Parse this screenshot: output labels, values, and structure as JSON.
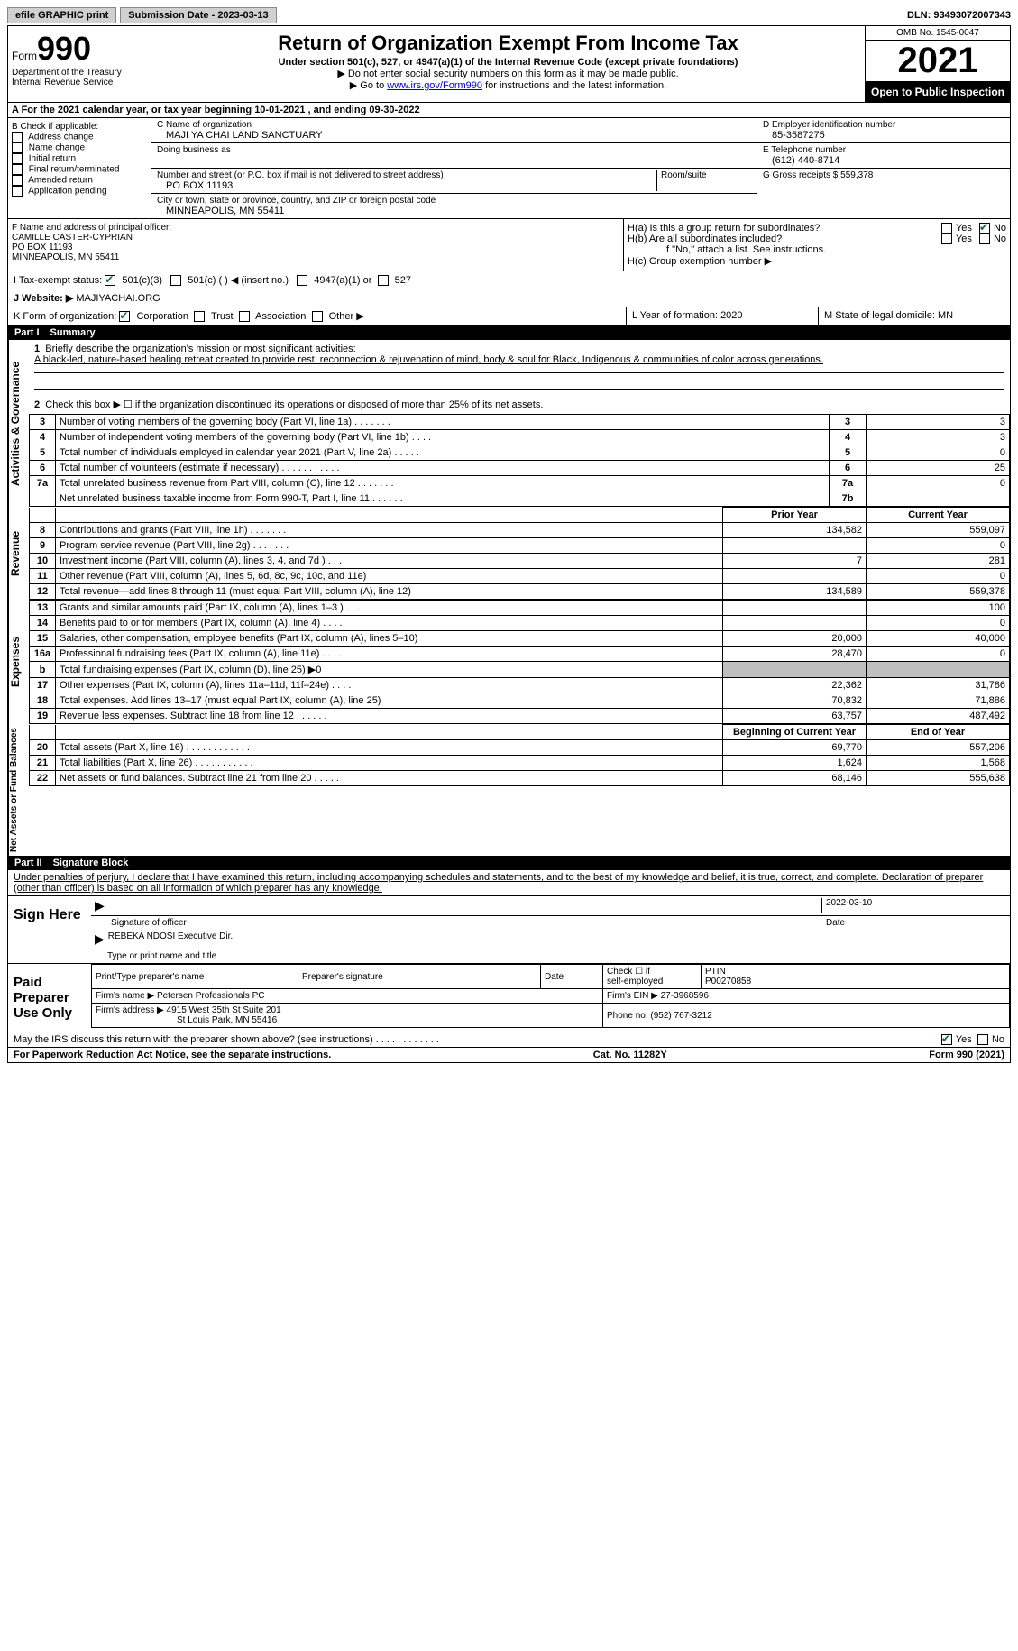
{
  "topbar": {
    "efile": "efile GRAPHIC print",
    "submission": "Submission Date - 2023-03-13",
    "dln": "DLN: 93493072007343"
  },
  "header": {
    "form_label": "Form",
    "form_number": "990",
    "dept": "Department of the Treasury",
    "irs": "Internal Revenue Service",
    "title": "Return of Organization Exempt From Income Tax",
    "subtitle": "Under section 501(c), 527, or 4947(a)(1) of the Internal Revenue Code (except private foundations)",
    "inst1": "▶ Do not enter social security numbers on this form as it may be made public.",
    "inst2_a": "▶ Go to ",
    "inst2_link": "www.irs.gov/Form990",
    "inst2_b": " for instructions and the latest information.",
    "omb": "OMB No. 1545-0047",
    "year": "2021",
    "inspection": "Open to Public Inspection"
  },
  "rowA": "A For the 2021 calendar year, or tax year beginning 10-01-2021   , and ending 09-30-2022",
  "colB": {
    "title": "B Check if applicable:",
    "items": [
      "Address change",
      "Name change",
      "Initial return",
      "Final return/terminated",
      "Amended return",
      "Application pending"
    ]
  },
  "colC": {
    "name_lbl": "C Name of organization",
    "name": "MAJI YA CHAI LAND SANCTUARY",
    "dba_lbl": "Doing business as",
    "addr_lbl": "Number and street (or P.O. box if mail is not delivered to street address)",
    "room_lbl": "Room/suite",
    "addr": "PO BOX 11193",
    "city_lbl": "City or town, state or province, country, and ZIP or foreign postal code",
    "city": "MINNEAPOLIS, MN  55411"
  },
  "colD": {
    "ein_lbl": "D Employer identification number",
    "ein": "85-3587275",
    "tel_lbl": "E Telephone number",
    "tel": "(612) 440-8714",
    "gross_lbl": "G Gross receipts $",
    "gross": "559,378"
  },
  "rowF": {
    "lbl": "F Name and address of principal officer:",
    "name": "CAMILLE CASTER-CYPRIAN",
    "addr1": "PO BOX 11193",
    "addr2": "MINNEAPOLIS, MN  55411"
  },
  "rowH": {
    "ha": "H(a)  Is this a group return for subordinates?",
    "hb": "H(b)  Are all subordinates included?",
    "hb_note": "If \"No,\" attach a list. See instructions.",
    "hc": "H(c)  Group exemption number ▶",
    "yes": "Yes",
    "no": "No"
  },
  "rowI": {
    "lbl": "I   Tax-exempt status:",
    "o1": "501(c)(3)",
    "o2": "501(c) (   ) ◀ (insert no.)",
    "o3": "4947(a)(1) or",
    "o4": "527"
  },
  "rowJ": {
    "lbl": "J   Website: ▶",
    "val": "MAJIYACHAI.ORG"
  },
  "rowK": {
    "lbl": "K Form of organization:",
    "o1": "Corporation",
    "o2": "Trust",
    "o3": "Association",
    "o4": "Other ▶",
    "l_lbl": "L Year of formation:",
    "l_val": "2020",
    "m_lbl": "M State of legal domicile:",
    "m_val": "MN"
  },
  "part1": {
    "hdr_num": "Part I",
    "hdr_title": "Summary",
    "l1_lbl": "Briefly describe the organization's mission or most significant activities:",
    "l1_val": "A black-led, nature-based healing retreat created to provide rest, reconnection & rejuvenation of mind, body & soul for Black, Indigenous & communities of color across generations.",
    "l2": "Check this box ▶ ☐ if the organization discontinued its operations or disposed of more than 25% of its net assets.",
    "vert_ag": "Activities & Governance",
    "vert_rev": "Revenue",
    "vert_exp": "Expenses",
    "vert_na": "Net Assets or Fund Balances"
  },
  "ag_lines": [
    {
      "n": "3",
      "d": "Number of voting members of the governing body (Part VI, line 1a)   .    .    .    .    .    .    .",
      "b": "3",
      "v": "3"
    },
    {
      "n": "4",
      "d": "Number of independent voting members of the governing body (Part VI, line 1b)   .    .    .    .",
      "b": "4",
      "v": "3"
    },
    {
      "n": "5",
      "d": "Total number of individuals employed in calendar year 2021 (Part V, line 2a)   .    .    .    .    .",
      "b": "5",
      "v": "0"
    },
    {
      "n": "6",
      "d": "Total number of volunteers (estimate if necessary)   .    .    .    .    .    .    .    .    .    .    .",
      "b": "6",
      "v": "25"
    },
    {
      "n": "7a",
      "d": "Total unrelated business revenue from Part VIII, column (C), line 12   .    .    .    .    .    .    .",
      "b": "7a",
      "v": "0"
    },
    {
      "n": "",
      "d": "Net unrelated business taxable income from Form 990-T, Part I, line 11   .    .    .    .    .    .",
      "b": "7b",
      "v": ""
    }
  ],
  "two_col_hdr": {
    "py": "Prior Year",
    "cy": "Current Year"
  },
  "rev_lines": [
    {
      "n": "8",
      "d": "Contributions and grants (Part VIII, line 1h)   .    .    .    .    .    .    .",
      "py": "134,582",
      "cy": "559,097"
    },
    {
      "n": "9",
      "d": "Program service revenue (Part VIII, line 2g)   .    .    .    .    .    .    .",
      "py": "",
      "cy": "0"
    },
    {
      "n": "10",
      "d": "Investment income (Part VIII, column (A), lines 3, 4, and 7d )   .    .    .",
      "py": "7",
      "cy": "281"
    },
    {
      "n": "11",
      "d": "Other revenue (Part VIII, column (A), lines 5, 6d, 8c, 9c, 10c, and 11e)",
      "py": "",
      "cy": "0"
    },
    {
      "n": "12",
      "d": "Total revenue—add lines 8 through 11 (must equal Part VIII, column (A), line 12)",
      "py": "134,589",
      "cy": "559,378"
    }
  ],
  "exp_lines": [
    {
      "n": "13",
      "d": "Grants and similar amounts paid (Part IX, column (A), lines 1–3 )   .    .    .",
      "py": "",
      "cy": "100"
    },
    {
      "n": "14",
      "d": "Benefits paid to or for members (Part IX, column (A), line 4)   .    .    .    .",
      "py": "",
      "cy": "0"
    },
    {
      "n": "15",
      "d": "Salaries, other compensation, employee benefits (Part IX, column (A), lines 5–10)",
      "py": "20,000",
      "cy": "40,000"
    },
    {
      "n": "16a",
      "d": "Professional fundraising fees (Part IX, column (A), line 11e)   .    .    .    .",
      "py": "28,470",
      "cy": "0"
    },
    {
      "n": "b",
      "d": "Total fundraising expenses (Part IX, column (D), line 25) ▶0",
      "py": "_shade_",
      "cy": "_shade_"
    },
    {
      "n": "17",
      "d": "Other expenses (Part IX, column (A), lines 11a–11d, 11f–24e)   .    .    .    .",
      "py": "22,362",
      "cy": "31,786"
    },
    {
      "n": "18",
      "d": "Total expenses. Add lines 13–17 (must equal Part IX, column (A), line 25)",
      "py": "70,832",
      "cy": "71,886"
    },
    {
      "n": "19",
      "d": "Revenue less expenses. Subtract line 18 from line 12   .    .    .    .    .    .",
      "py": "63,757",
      "cy": "487,492"
    }
  ],
  "na_hdr": {
    "b": "Beginning of Current Year",
    "e": "End of Year"
  },
  "na_lines": [
    {
      "n": "20",
      "d": "Total assets (Part X, line 16)   .    .    .    .    .    .    .    .    .    .    .    .",
      "py": "69,770",
      "cy": "557,206"
    },
    {
      "n": "21",
      "d": "Total liabilities (Part X, line 26)   .    .    .    .    .    .    .    .    .    .    .",
      "py": "1,624",
      "cy": "1,568"
    },
    {
      "n": "22",
      "d": "Net assets or fund balances. Subtract line 21 from line 20   .    .    .    .    .",
      "py": "68,146",
      "cy": "555,638"
    }
  ],
  "part2": {
    "hdr_num": "Part II",
    "hdr_title": "Signature Block",
    "decl": "Under penalties of perjury, I declare that I have examined this return, including accompanying schedules and statements, and to the best of my knowledge and belief, it is true, correct, and complete. Declaration of preparer (other than officer) is based on all information of which preparer has any knowledge."
  },
  "sign": {
    "lbl": "Sign Here",
    "sig_lbl": "Signature of officer",
    "date": "2022-03-10",
    "date_lbl": "Date",
    "name": "REBEKA NDOSI  Executive Dir.",
    "name_lbl": "Type or print name and title"
  },
  "prep": {
    "lbl": "Paid Preparer Use Only",
    "c1": "Print/Type preparer's name",
    "c2": "Preparer's signature",
    "c3": "Date",
    "c4a": "Check ☐ if",
    "c4b": "self-employed",
    "c5_lbl": "PTIN",
    "c5": "P00270858",
    "firm_lbl": "Firm's name    ▶",
    "firm": "Petersen Professionals PC",
    "ein_lbl": "Firm's EIN ▶",
    "ein": "27-3968596",
    "addr_lbl": "Firm's address ▶",
    "addr1": "4915 West 35th St Suite 201",
    "addr2": "St Louis Park, MN  55416",
    "phone_lbl": "Phone no.",
    "phone": "(952) 767-3212"
  },
  "footer": {
    "q": "May the IRS discuss this return with the preparer shown above? (see instructions)   .    .    .    .    .    .    .    .    .    .    .    .",
    "yes": "Yes",
    "no": "No",
    "pra": "For Paperwork Reduction Act Notice, see the separate instructions.",
    "cat": "Cat. No. 11282Y",
    "form": "Form 990 (2021)"
  }
}
